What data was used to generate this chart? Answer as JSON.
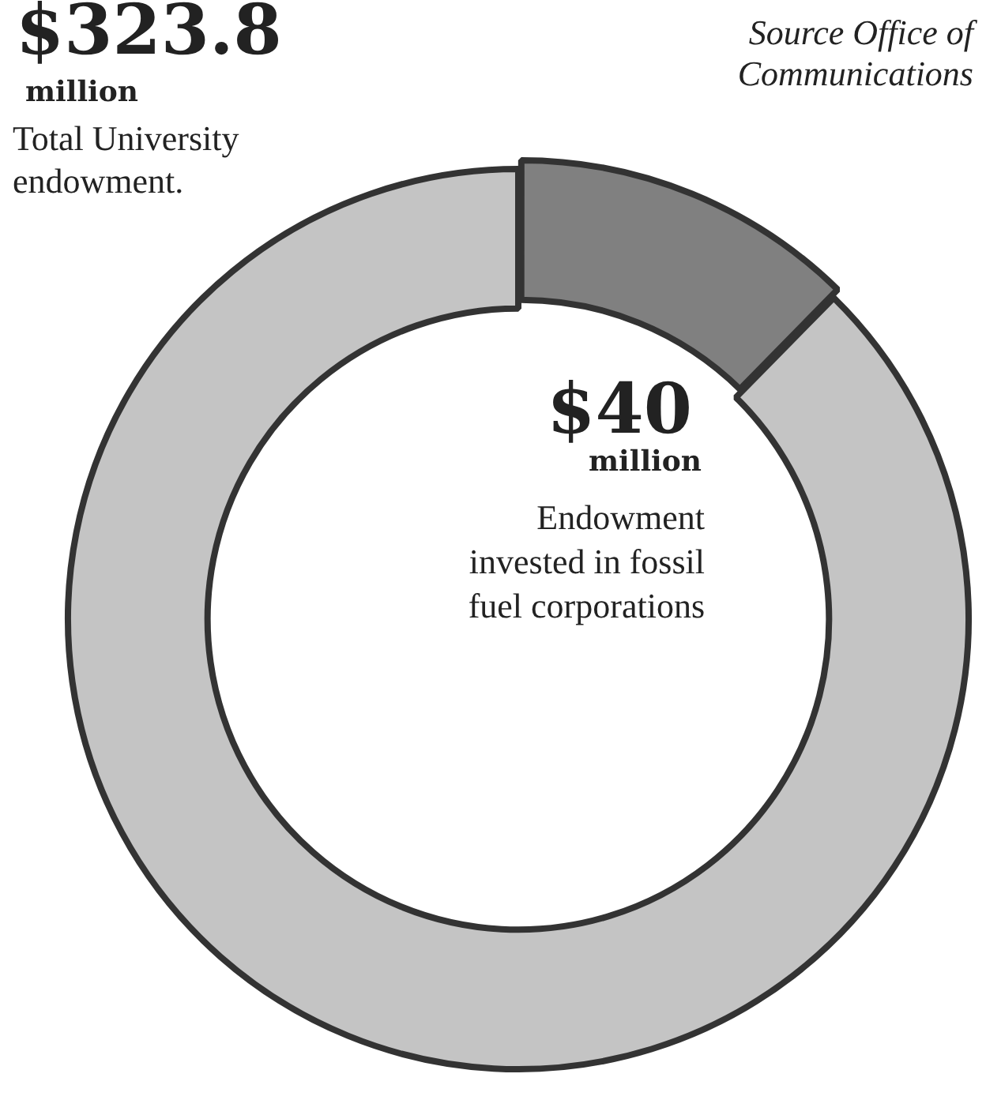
{
  "chart_data": {
    "type": "donut",
    "categories": [
      null,
      null
    ],
    "values": [
      12.35,
      87.65
    ],
    "colors": [
      "#808080",
      "#c4c4c4"
    ],
    "legend": false,
    "annotations": [
      "$323.8",
      "million",
      "Total University endowment.",
      "$40",
      "million",
      "Endowment invested in fossil fuel corporations",
      "Source Office of Communications"
    ]
  }
}
